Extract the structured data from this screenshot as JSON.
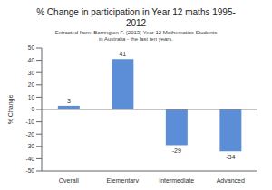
{
  "chart_data": {
    "type": "bar",
    "title": "% Change in participation in Year 12 maths 1995-2012",
    "subtitle": "Extracted from: Barrington F. (2013) Year 12 Mathematics Students in Australia - the last ten years.",
    "y_label": "% Change",
    "categories": [
      "Overall",
      "Elementary",
      "Intermediate",
      "Advanced"
    ],
    "values": [
      3,
      41,
      -29,
      -34
    ],
    "color": "#5b8ed6",
    "ylim": [
      -50,
      50
    ],
    "yticks": [
      -50,
      -40,
      -30,
      -20,
      -10,
      0,
      10,
      20,
      30,
      40,
      50
    ],
    "grid": false,
    "data_labels": true
  }
}
